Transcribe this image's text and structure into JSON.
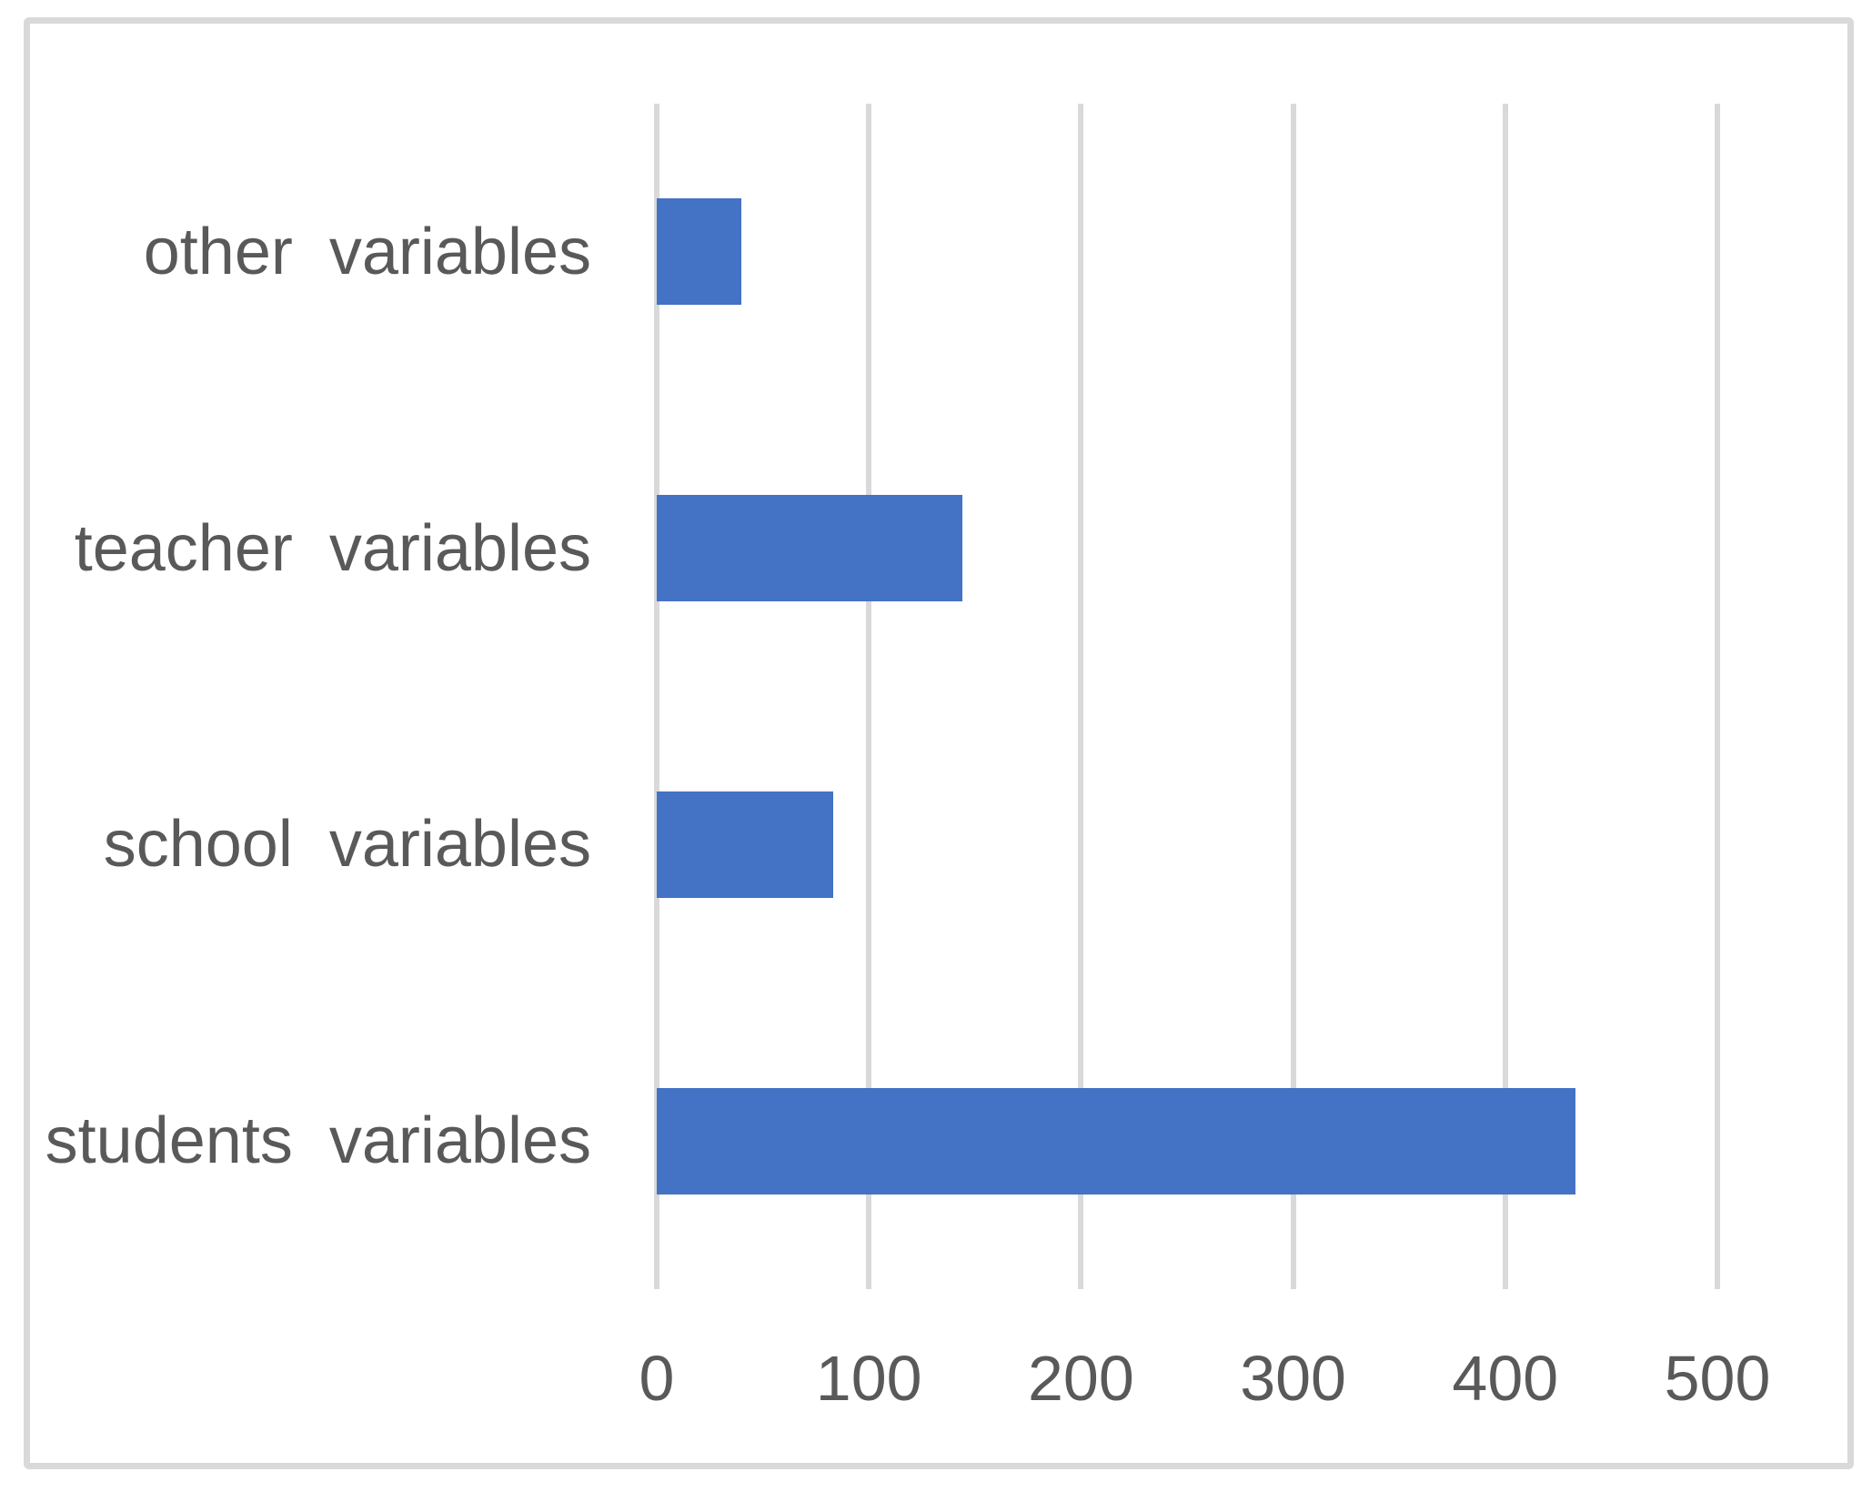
{
  "chart_data": {
    "type": "bar",
    "orientation": "horizontal",
    "title": "",
    "categories": [
      "other variables",
      "teacher variables",
      "school variables",
      "students variables"
    ],
    "category_order": "top-to-bottom",
    "values": [
      40,
      144,
      83,
      433
    ],
    "xlabel": "",
    "ylabel": "",
    "xlim": [
      0,
      500
    ],
    "xticks": [
      0,
      100,
      200,
      300,
      400,
      500
    ],
    "xtick_labels": [
      "0",
      "100",
      "200",
      "300",
      "400",
      "500"
    ],
    "grid": true,
    "legend": "none",
    "colors": {
      "bar": "#4472C4",
      "gridline": "#D9D9D9",
      "tick_text": "#595959",
      "category_text": "#595959",
      "frame_border": "#D9D9D9",
      "background": "#FFFFFF"
    }
  }
}
